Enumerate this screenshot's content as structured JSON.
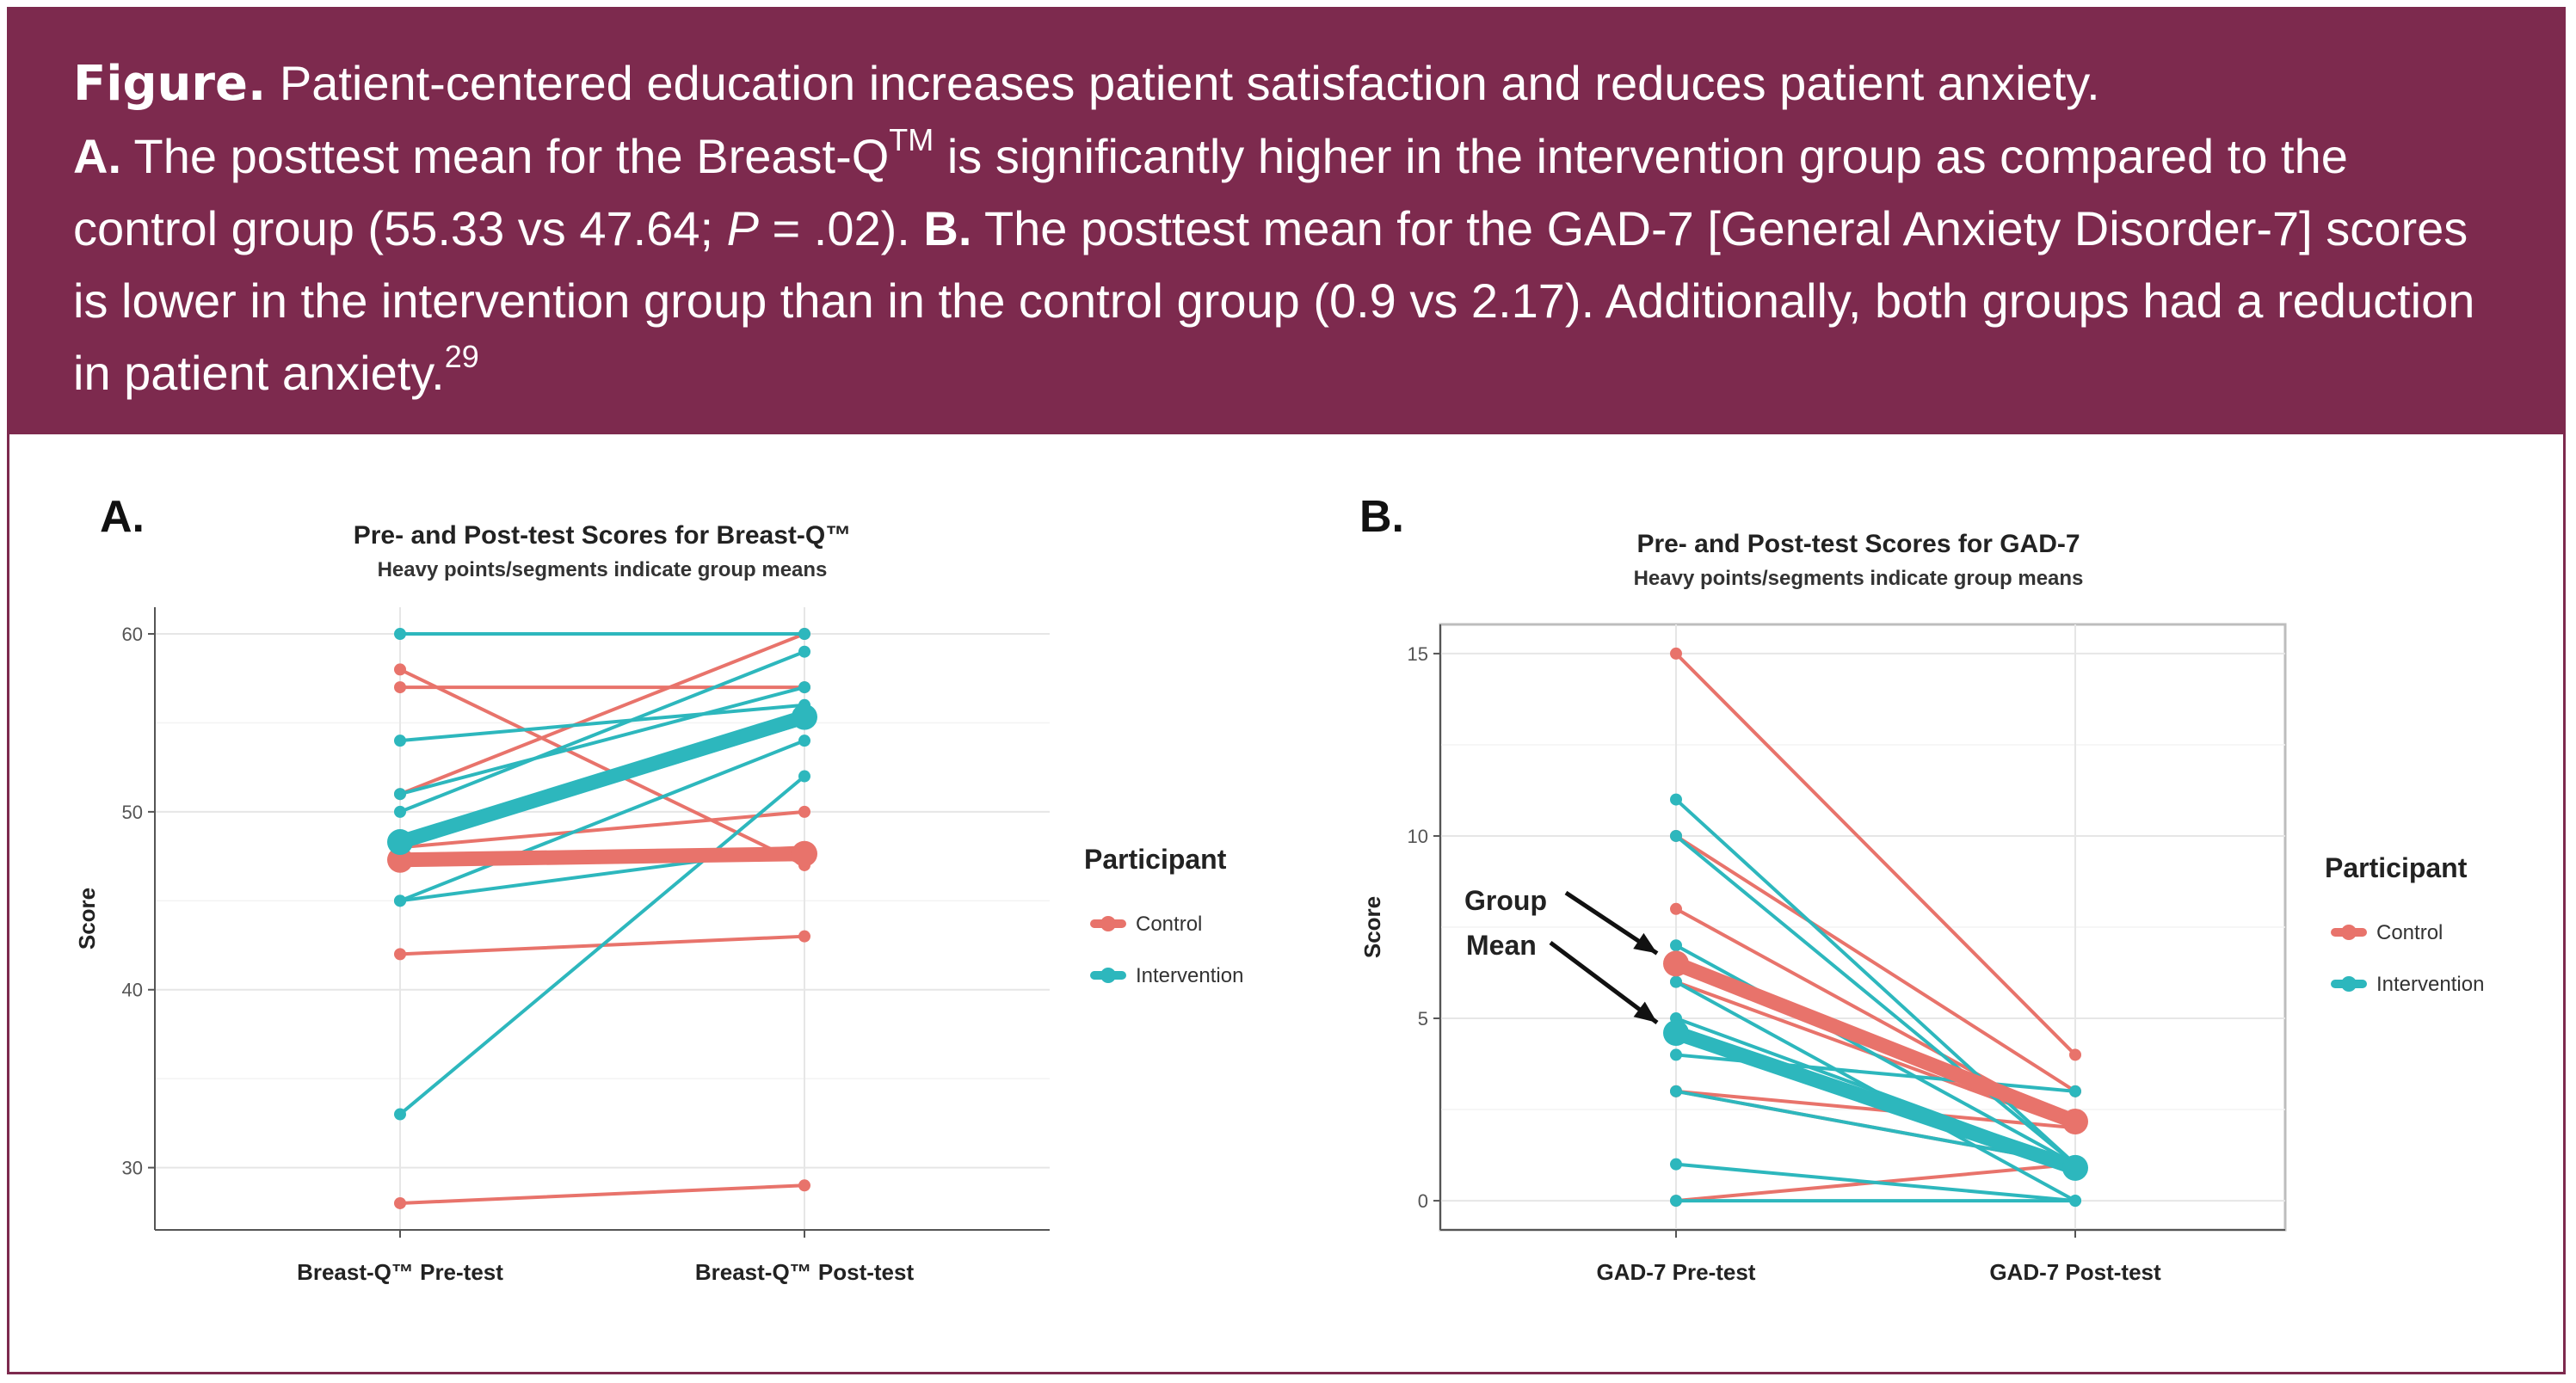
{
  "caption": {
    "figure_label": "Figure.",
    "figure_text": " Patient-centered education increases patient satisfaction and reduces patient anxiety.",
    "a_label": "A.",
    "a_text_1": " The posttest mean for the Breast-Q",
    "a_tm": "TM",
    "a_text_2": " is significantly higher in the intervention group as compared to the control group (55.33 vs 47.64; ",
    "a_p": "P",
    "a_text_3": " = .02). ",
    "b_label": "B.",
    "b_text": " The posttest mean for the GAD-7 [General Anxiety Disorder-7] scores is lower in the intervention group than in the control group (0.9 vs 2.17). Additionally, both groups had a reduction in patient anxiety.",
    "ref": "29"
  },
  "colors": {
    "control": "#e8736b",
    "intervention": "#2db7bd",
    "caption_bg": "#7d2a4e",
    "grid": "#ececec"
  },
  "chart_data": [
    {
      "type": "line",
      "panel_label": "A.",
      "title": "Pre- and Post-test Scores for Breast-Q™",
      "subtitle": "Heavy points/segments indicate group means",
      "xlabel": "",
      "ylabel": "Score",
      "categories": [
        "Breast-Q™ Pre-test",
        "Breast-Q™ Post-test"
      ],
      "ylim": [
        26.5,
        61.5
      ],
      "yticks": [
        30,
        40,
        50,
        60
      ],
      "grid": true,
      "legend": {
        "title": "Participant",
        "position": "right",
        "entries": [
          "Control",
          "Intervention"
        ]
      },
      "series": [
        {
          "name": "Control",
          "color": "#e8736b",
          "participants": [
            [
              58,
              47
            ],
            [
              57,
              57
            ],
            [
              51,
              60
            ],
            [
              48,
              50
            ],
            [
              47,
              48
            ],
            [
              42,
              43
            ],
            [
              28,
              29
            ]
          ],
          "mean": [
            47.3,
            47.64
          ]
        },
        {
          "name": "Intervention",
          "color": "#2db7bd",
          "participants": [
            [
              60,
              60
            ],
            [
              54,
              56
            ],
            [
              51,
              57
            ],
            [
              50,
              59
            ],
            [
              48,
              55
            ],
            [
              45,
              54
            ],
            [
              45,
              48
            ],
            [
              33,
              52
            ]
          ],
          "mean": [
            48.3,
            55.33
          ]
        }
      ]
    },
    {
      "type": "line",
      "panel_label": "B.",
      "title": "Pre- and Post-test Scores for GAD-7",
      "subtitle": "Heavy points/segments indicate group means",
      "xlabel": "",
      "ylabel": "Score",
      "categories": [
        "GAD-7 Pre-test",
        "GAD-7 Post-test"
      ],
      "ylim": [
        -0.8,
        15.8
      ],
      "yticks": [
        0,
        5,
        10,
        15
      ],
      "grid": true,
      "annotation": {
        "line1": "Group",
        "line2": "Mean"
      },
      "legend": {
        "title": "Participant",
        "position": "right",
        "entries": [
          "Control",
          "Intervention"
        ]
      },
      "series": [
        {
          "name": "Control",
          "color": "#e8736b",
          "participants": [
            [
              15,
              4
            ],
            [
              10,
              3
            ],
            [
              8,
              2
            ],
            [
              6,
              2
            ],
            [
              3,
              1
            ],
            [
              3,
              2
            ],
            [
              0,
              1
            ]
          ],
          "mean": [
            6.5,
            2.17
          ]
        },
        {
          "name": "Intervention",
          "color": "#2db7bd",
          "participants": [
            [
              11,
              1
            ],
            [
              10,
              1
            ],
            [
              7,
              1
            ],
            [
              6,
              0
            ],
            [
              5,
              1
            ],
            [
              4,
              3
            ],
            [
              3,
              1
            ],
            [
              1,
              0
            ],
            [
              0,
              0
            ]
          ],
          "mean": [
            4.6,
            0.9
          ]
        }
      ]
    }
  ]
}
